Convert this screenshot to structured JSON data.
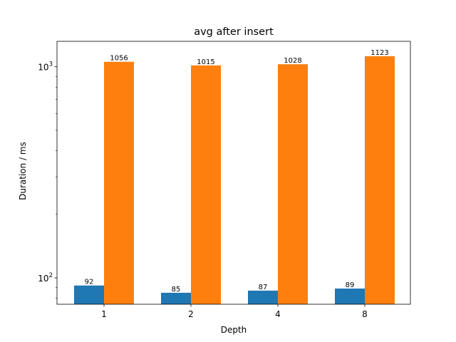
{
  "chart_data": {
    "type": "bar",
    "title": "avg after insert",
    "xlabel": "Depth",
    "ylabel": "Duration / ms",
    "yscale": "log",
    "ylim": [
      75,
      1320
    ],
    "y_ticks": [
      {
        "value": 100,
        "base": "10",
        "exp": "2"
      },
      {
        "value": 1000,
        "base": "10",
        "exp": "3"
      }
    ],
    "categories": [
      "1",
      "2",
      "4",
      "8"
    ],
    "series": [
      {
        "color": "#1f77b4",
        "values": [
          92,
          85,
          87,
          89
        ],
        "labels": [
          "92",
          "85",
          "87",
          "89"
        ]
      },
      {
        "color": "#ff7f0e",
        "values": [
          1056,
          1015,
          1028,
          1123
        ],
        "labels": [
          "1056",
          "1015",
          "1028",
          "1123"
        ]
      }
    ],
    "grid": false,
    "legend": "none"
  }
}
